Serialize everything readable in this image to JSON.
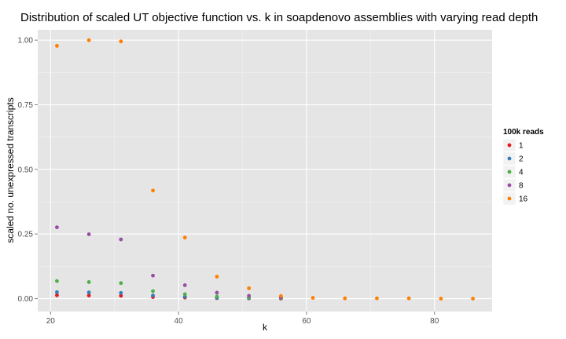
{
  "chart_data": {
    "type": "scatter",
    "title": "Distribution of scaled UT objective function vs. k in soapdenovo assemblies with varying read depth",
    "xlabel": "k",
    "ylabel": "scaled no. unexpressed transcripts",
    "xlim": [
      18,
      89
    ],
    "ylim": [
      -0.05,
      1.04
    ],
    "x_ticks": [
      20,
      40,
      60,
      80
    ],
    "x_tick_labels": [
      "20",
      "40",
      "60",
      "80"
    ],
    "y_ticks": [
      0,
      0.25,
      0.5,
      0.75,
      1.0
    ],
    "y_tick_labels": [
      "0.00",
      "0.25",
      "0.50",
      "0.75",
      "1.00"
    ],
    "grid": true,
    "legend": {
      "title": "100k reads",
      "position": "right"
    },
    "series": [
      {
        "name": "1",
        "color": "#e41a1c",
        "points": [
          [
            21,
            0.013
          ],
          [
            26,
            0.012
          ],
          [
            31,
            0.011
          ],
          [
            36,
            0.006
          ],
          [
            41,
            0.004
          ],
          [
            46,
            0.002
          ],
          [
            51,
            0.001
          ],
          [
            56,
            0.0
          ]
        ]
      },
      {
        "name": "2",
        "color": "#377eb8",
        "points": [
          [
            21,
            0.025
          ],
          [
            26,
            0.024
          ],
          [
            31,
            0.022
          ],
          [
            36,
            0.012
          ],
          [
            41,
            0.007
          ],
          [
            46,
            0.003
          ],
          [
            51,
            0.002
          ],
          [
            56,
            0.001
          ]
        ]
      },
      {
        "name": "4",
        "color": "#4daf4a",
        "points": [
          [
            21,
            0.068
          ],
          [
            26,
            0.064
          ],
          [
            31,
            0.06
          ],
          [
            36,
            0.029
          ],
          [
            41,
            0.017
          ],
          [
            46,
            0.008
          ],
          [
            51,
            0.004
          ],
          [
            56,
            0.002
          ]
        ]
      },
      {
        "name": "8",
        "color": "#984ea3",
        "points": [
          [
            21,
            0.276
          ],
          [
            26,
            0.249
          ],
          [
            31,
            0.229
          ],
          [
            36,
            0.089
          ],
          [
            41,
            0.052
          ],
          [
            46,
            0.023
          ],
          [
            51,
            0.011
          ],
          [
            56,
            0.004
          ]
        ]
      },
      {
        "name": "16",
        "color": "#ff7f00",
        "points": [
          [
            21,
            0.978
          ],
          [
            26,
            1.0
          ],
          [
            31,
            0.995
          ],
          [
            36,
            0.418
          ],
          [
            41,
            0.236
          ],
          [
            46,
            0.085
          ],
          [
            51,
            0.04
          ],
          [
            56,
            0.01
          ],
          [
            61,
            0.003
          ],
          [
            66,
            0.001
          ],
          [
            71,
            0.001
          ],
          [
            76,
            0.001
          ],
          [
            81,
            0.0
          ],
          [
            86,
            0.0
          ]
        ]
      }
    ]
  }
}
